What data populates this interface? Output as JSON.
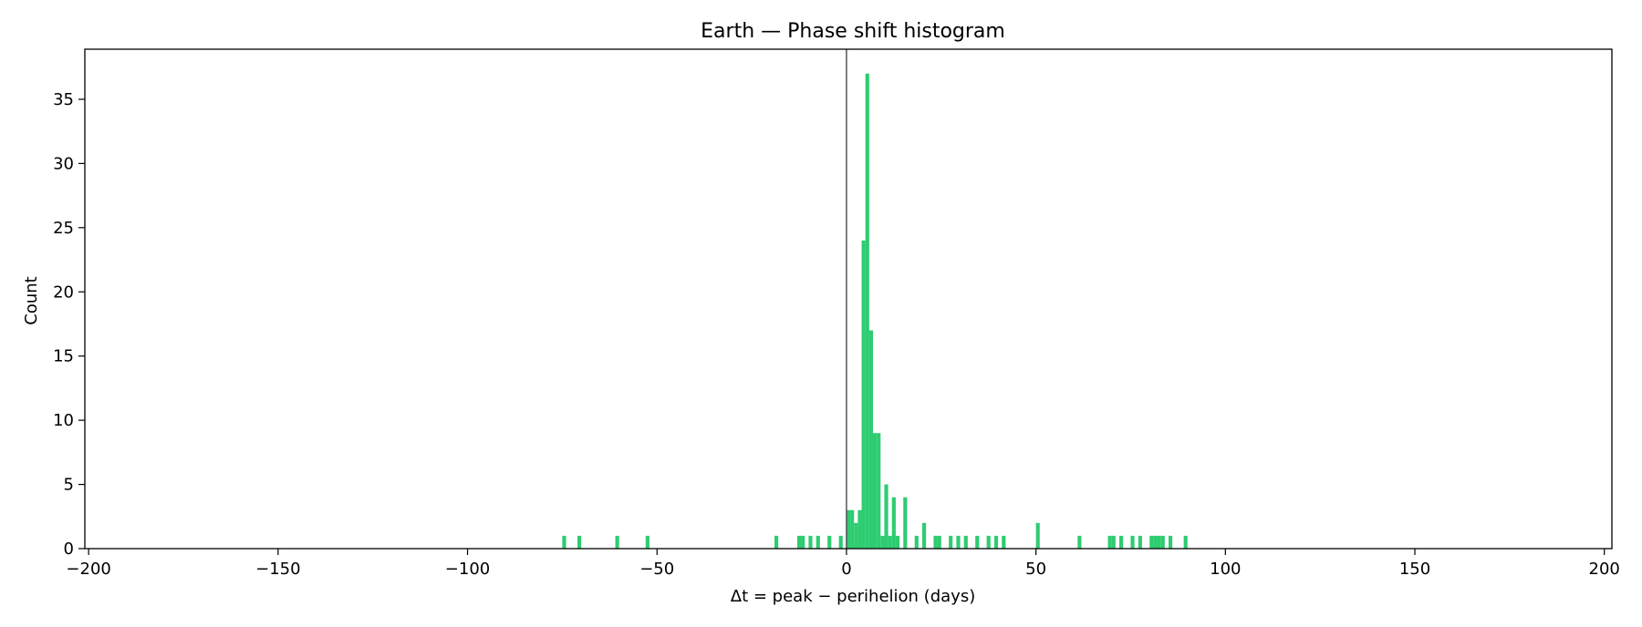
{
  "chart_data": {
    "type": "bar",
    "title": "Earth — Phase shift histogram",
    "xlabel": "Δt = peak − perihelion (days)",
    "ylabel": "Count",
    "xlim": [
      -201,
      202
    ],
    "ylim": [
      0,
      38.9
    ],
    "x_ticks": [
      -200,
      -150,
      -100,
      -50,
      0,
      50,
      100,
      150,
      200
    ],
    "x_tick_labels": [
      "−200",
      "−150",
      "−100",
      "−50",
      "0",
      "50",
      "100",
      "150",
      "200"
    ],
    "y_ticks": [
      0,
      5,
      10,
      15,
      20,
      25,
      30,
      35
    ],
    "y_tick_labels": [
      "0",
      "5",
      "10",
      "15",
      "20",
      "25",
      "30",
      "35"
    ],
    "bin_width": 1,
    "bar_color": "#2ecc71",
    "reference_line_x": 0,
    "reference_line_color": "#555555",
    "bins": [
      {
        "x": -75,
        "count": 1
      },
      {
        "x": -71,
        "count": 1
      },
      {
        "x": -61,
        "count": 1
      },
      {
        "x": -53,
        "count": 1
      },
      {
        "x": -19,
        "count": 1
      },
      {
        "x": -13,
        "count": 1
      },
      {
        "x": -12,
        "count": 1
      },
      {
        "x": -10,
        "count": 1
      },
      {
        "x": -8,
        "count": 1
      },
      {
        "x": -5,
        "count": 1
      },
      {
        "x": -2,
        "count": 1
      },
      {
        "x": 0,
        "count": 3
      },
      {
        "x": 1,
        "count": 3
      },
      {
        "x": 2,
        "count": 2
      },
      {
        "x": 3,
        "count": 3
      },
      {
        "x": 4,
        "count": 24
      },
      {
        "x": 5,
        "count": 37
      },
      {
        "x": 6,
        "count": 17
      },
      {
        "x": 7,
        "count": 9
      },
      {
        "x": 8,
        "count": 9
      },
      {
        "x": 9,
        "count": 1
      },
      {
        "x": 10,
        "count": 5
      },
      {
        "x": 11,
        "count": 1
      },
      {
        "x": 12,
        "count": 4
      },
      {
        "x": 13,
        "count": 1
      },
      {
        "x": 15,
        "count": 4
      },
      {
        "x": 18,
        "count": 1
      },
      {
        "x": 20,
        "count": 2
      },
      {
        "x": 23,
        "count": 1
      },
      {
        "x": 24,
        "count": 1
      },
      {
        "x": 27,
        "count": 1
      },
      {
        "x": 29,
        "count": 1
      },
      {
        "x": 31,
        "count": 1
      },
      {
        "x": 34,
        "count": 1
      },
      {
        "x": 37,
        "count": 1
      },
      {
        "x": 39,
        "count": 1
      },
      {
        "x": 41,
        "count": 1
      },
      {
        "x": 50,
        "count": 2
      },
      {
        "x": 61,
        "count": 1
      },
      {
        "x": 69,
        "count": 1
      },
      {
        "x": 70,
        "count": 1
      },
      {
        "x": 72,
        "count": 1
      },
      {
        "x": 75,
        "count": 1
      },
      {
        "x": 77,
        "count": 1
      },
      {
        "x": 80,
        "count": 1
      },
      {
        "x": 81,
        "count": 1
      },
      {
        "x": 82,
        "count": 1
      },
      {
        "x": 83,
        "count": 1
      },
      {
        "x": 85,
        "count": 1
      },
      {
        "x": 89,
        "count": 1
      }
    ]
  }
}
